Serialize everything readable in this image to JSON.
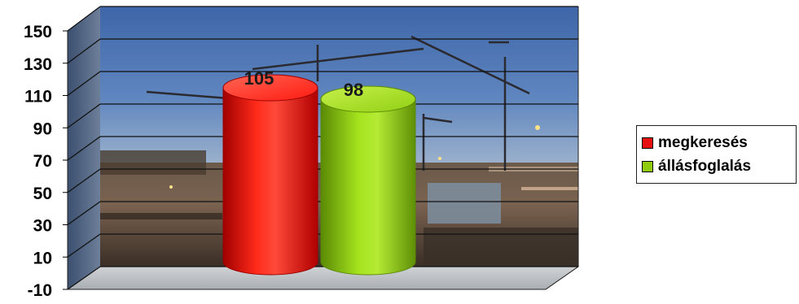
{
  "chart_data": {
    "type": "bar",
    "categories": [
      ""
    ],
    "series": [
      {
        "name": "megkeresés",
        "values": [
          105
        ],
        "color": "#e81010"
      },
      {
        "name": "állásfoglalás",
        "values": [
          98
        ],
        "color": "#8fcc10"
      }
    ],
    "ylim": [
      -10,
      150
    ],
    "yticks": [
      "150",
      "130",
      "110",
      "90",
      "70",
      "50",
      "30",
      "10",
      "-10"
    ],
    "data_labels": [
      "105",
      "98"
    ],
    "grid": true,
    "legend_position": "right",
    "style": "3d-cylinder",
    "background": "photo-construction-cranes-at-dusk"
  }
}
